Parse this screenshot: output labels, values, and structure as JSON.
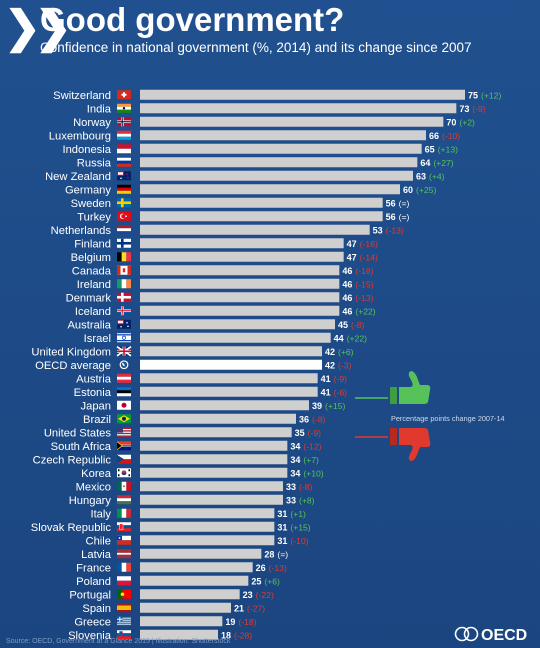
{
  "header": {
    "chevrons_icon": "double-chevron-right-icon",
    "title": "Good government?",
    "subtitle": "Confidence in national government (%, 2014) and its change since 2007"
  },
  "legend": {
    "text": "Percentage points change 2007-14",
    "up_icon": "thumbs-up-icon",
    "down_icon": "thumbs-down-icon"
  },
  "footer": {
    "source": "Source: OECD, Government at a Glance 2015 | Illustration: Shutterstock",
    "logo_text": "OECD"
  },
  "colors": {
    "positive": "#57c25a",
    "negative": "#e03a2f",
    "bar": "#cfcfcf",
    "highlight_bar": "#ffffff",
    "background": "#1f4e8c"
  },
  "chart_data": {
    "type": "bar",
    "orientation": "horizontal",
    "title": "Confidence in national government (%, 2014) and its change since 2007",
    "xlim": [
      0,
      80
    ],
    "grid": false,
    "highlight": "OECD average",
    "categories": [
      "Switzerland",
      "India",
      "Norway",
      "Luxembourg",
      "Indonesia",
      "Russia",
      "New Zealand",
      "Germany",
      "Sweden",
      "Turkey",
      "Netherlands",
      "Finland",
      "Belgium",
      "Canada",
      "Ireland",
      "Denmark",
      "Iceland",
      "Australia",
      "Israel",
      "United Kingdom",
      "OECD average",
      "Austria",
      "Estonia",
      "Japan",
      "Brazil",
      "United States",
      "South Africa",
      "Czech Republic",
      "Korea",
      "Mexico",
      "Hungary",
      "Italy",
      "Slovak Republic",
      "Chile",
      "Latvia",
      "France",
      "Poland",
      "Portugal",
      "Spain",
      "Greece",
      "Slovenia"
    ],
    "series": [
      {
        "values": [
          75,
          73,
          70,
          66,
          65,
          64,
          63,
          60,
          56,
          56,
          53,
          47,
          47,
          46,
          46,
          46,
          46,
          45,
          44,
          42,
          42,
          41,
          41,
          39,
          36,
          35,
          34,
          34,
          34,
          33,
          33,
          31,
          31,
          31,
          28,
          26,
          25,
          23,
          21,
          19,
          18
        ]
      }
    ],
    "value_labels": [
      "75",
      "73",
      "70",
      "66",
      "65",
      "64",
      "63",
      "60",
      "56",
      "56",
      "53",
      "47",
      "47",
      "46",
      "46",
      "46",
      "46",
      "45",
      "44",
      "42",
      "42",
      "41",
      "41",
      "39",
      "36",
      "35",
      "34",
      "34",
      "34",
      "33",
      "33",
      "31",
      "31",
      "31",
      "28",
      "26",
      "25",
      "23",
      "21",
      "19",
      "18"
    ],
    "change_labels": [
      "(+12)",
      "(-9)",
      "(+2)",
      "(-10)",
      "(+13)",
      "(+27)",
      "(+4)",
      "(+25)",
      "(=)",
      "(=)",
      "(-13)",
      "(-16)",
      "(-14)",
      "(-16)",
      "(-15)",
      "(-13)",
      "(+22)",
      "(-8)",
      "(+22)",
      "(+6)",
      "(-3)",
      "(-9)",
      "(-6)",
      "(+15)",
      "(-8)",
      "(-9)",
      "(-12)",
      "(+7)",
      "(+10)",
      "(-8)",
      "(+8)",
      "(+1)",
      "(+15)",
      "(-10)",
      "(=)",
      "(-13)",
      "(+6)",
      "(-22)",
      "(-27)",
      "(-18)",
      "(-28)"
    ],
    "change_sign": [
      "pos",
      "neg",
      "pos",
      "neg",
      "pos",
      "pos",
      "pos",
      "pos",
      "zero",
      "zero",
      "neg",
      "neg",
      "neg",
      "neg",
      "neg",
      "neg",
      "pos",
      "neg",
      "pos",
      "pos",
      "neg",
      "neg",
      "neg",
      "pos",
      "neg",
      "neg",
      "neg",
      "pos",
      "pos",
      "neg",
      "pos",
      "pos",
      "pos",
      "neg",
      "zero",
      "neg",
      "pos",
      "neg",
      "neg",
      "neg",
      "neg"
    ],
    "flag_icons": [
      "flag-switzerland-icon",
      "flag-india-icon",
      "flag-norway-icon",
      "flag-luxembourg-icon",
      "flag-indonesia-icon",
      "flag-russia-icon",
      "flag-new-zealand-icon",
      "flag-germany-icon",
      "flag-sweden-icon",
      "flag-turkey-icon",
      "flag-netherlands-icon",
      "flag-finland-icon",
      "flag-belgium-icon",
      "flag-canada-icon",
      "flag-ireland-icon",
      "flag-denmark-icon",
      "flag-iceland-icon",
      "flag-australia-icon",
      "flag-israel-icon",
      "flag-united-kingdom-icon",
      "oecd-globe-icon",
      "flag-austria-icon",
      "flag-estonia-icon",
      "flag-japan-icon",
      "flag-brazil-icon",
      "flag-united-states-icon",
      "flag-south-africa-icon",
      "flag-czech-republic-icon",
      "flag-korea-icon",
      "flag-mexico-icon",
      "flag-hungary-icon",
      "flag-italy-icon",
      "flag-slovak-republic-icon",
      "flag-chile-icon",
      "flag-latvia-icon",
      "flag-france-icon",
      "flag-poland-icon",
      "flag-portugal-icon",
      "flag-spain-icon",
      "flag-greece-icon",
      "flag-slovenia-icon"
    ]
  }
}
